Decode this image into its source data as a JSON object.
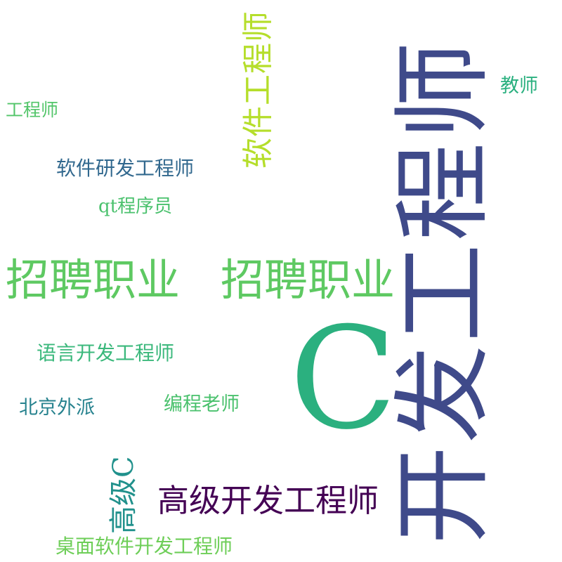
{
  "words": {
    "w0": {
      "text": "开发工程师",
      "color": "#3f4a8a"
    },
    "w1": {
      "text": "C",
      "color": "#2bb07f"
    },
    "w2": {
      "text": "招聘职业",
      "color": "#5ec962"
    },
    "w3": {
      "text": "招聘职业",
      "color": "#5ec962"
    },
    "w4": {
      "text": "软件工程师",
      "color": "#b5de2b"
    },
    "w5": {
      "text": "高级开发工程师",
      "color": "#440154"
    },
    "w6": {
      "text": "高级C",
      "color": "#21918c"
    },
    "w7": {
      "text": "软件研发工程师",
      "color": "#31688e"
    },
    "w8": {
      "text": "语言开发工程师",
      "color": "#3bb87c"
    },
    "w9": {
      "text": "北京外派",
      "color": "#26828e"
    },
    "w10": {
      "text": "编程老师",
      "color": "#4ac16d"
    },
    "w11": {
      "text": "桌面软件开发工程师",
      "color": "#6ece58"
    },
    "w12": {
      "text": "qt程序员",
      "color": "#4ac16d"
    },
    "w13": {
      "text": "工程师",
      "color": "#52c569"
    },
    "w14": {
      "text": "教师",
      "color": "#2ab07f"
    }
  }
}
